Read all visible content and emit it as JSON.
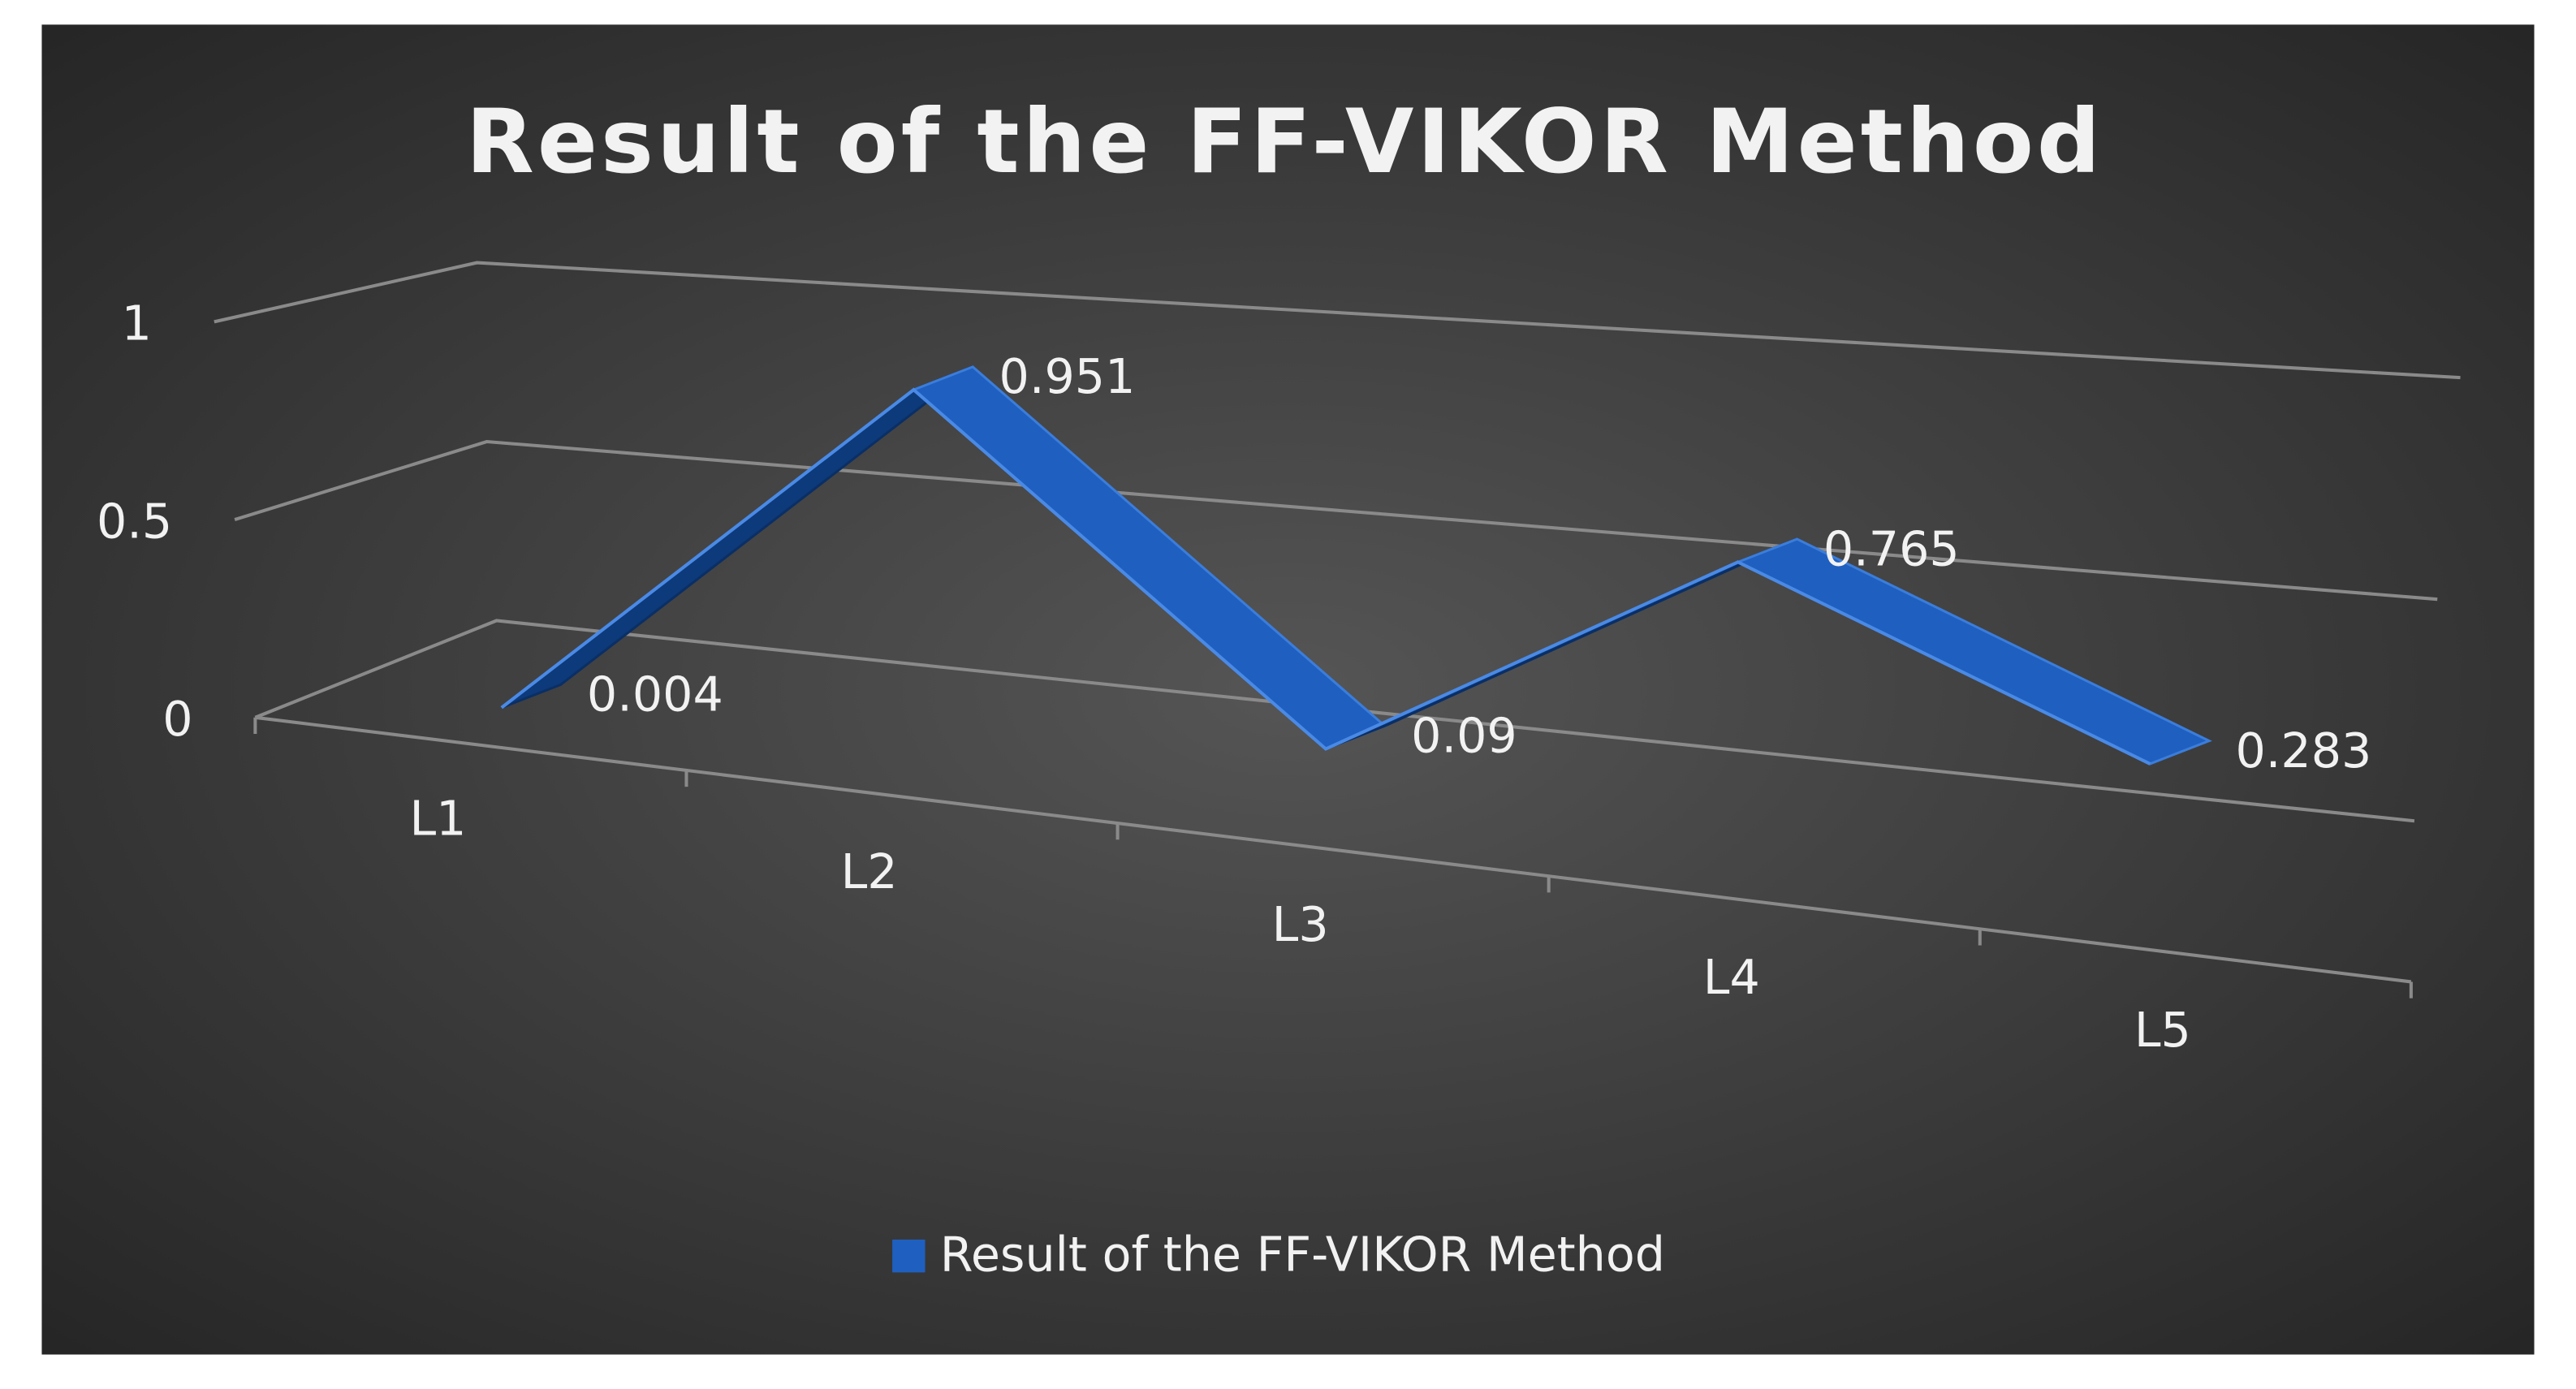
{
  "chart_data": {
    "type": "line",
    "title": "Result of the FF-VIKOR Method",
    "categories": [
      "L1",
      "L2",
      "L3",
      "L4",
      "L5"
    ],
    "series": [
      {
        "name": "Result of the FF-VIKOR Method",
        "color": "#1f5fbf",
        "values": [
          0.004,
          0.951,
          0.09,
          0.765,
          0.283
        ]
      }
    ],
    "ylim": [
      0,
      1
    ],
    "yticks": [
      0,
      0.5,
      1
    ],
    "grid": true,
    "legend": "bottom"
  }
}
